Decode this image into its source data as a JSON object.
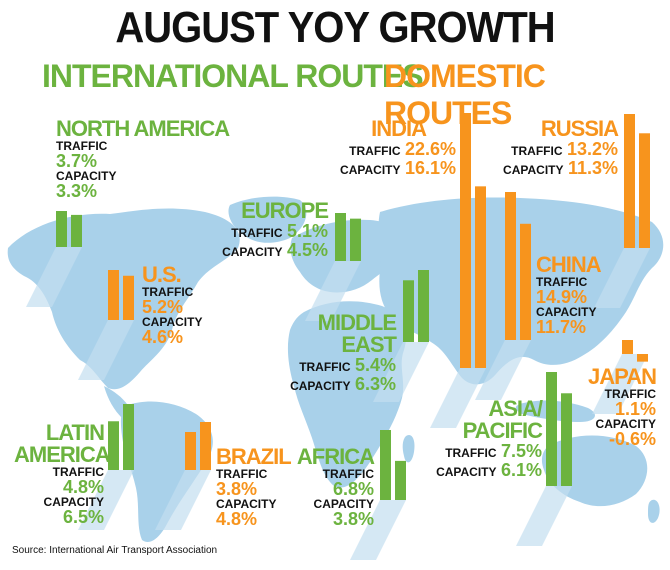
{
  "colors": {
    "international": "#6cb33f",
    "domestic": "#f7941d",
    "map": "#a9d1ea",
    "map_dark": "#c3def0"
  },
  "title": "AUGUST YOY GROWTH",
  "subtitle_international": "INTERNATIONAL ROUTES",
  "subtitle_domestic": "DOMESTIC ROUTES",
  "traffic_label": "TRAFFIC",
  "capacity_label": "CAPACITY",
  "source": "Source: International Air Transport Association",
  "chart_data": {
    "type": "bar",
    "series": [
      {
        "name": "TRAFFIC"
      },
      {
        "name": "CAPACITY"
      }
    ],
    "regions": [
      {
        "id": "north_america",
        "name": "NORTH AMERICA",
        "group": "international",
        "traffic": 3.7,
        "capacity": 3.3,
        "traffic_text": "3.7%",
        "capacity_text": "3.3%"
      },
      {
        "id": "us",
        "name": "U.S.",
        "group": "domestic",
        "traffic": 5.2,
        "capacity": 4.6,
        "traffic_text": "5.2%",
        "capacity_text": "4.6%"
      },
      {
        "id": "europe",
        "name": "EUROPE",
        "group": "international",
        "traffic": 5.1,
        "capacity": 4.5,
        "traffic_text": "5.1%",
        "capacity_text": "4.5%"
      },
      {
        "id": "middle_east",
        "name": "MIDDLE EAST",
        "group": "international",
        "traffic": 5.4,
        "capacity": 6.3,
        "traffic_text": "5.4%",
        "capacity_text": "6.3%"
      },
      {
        "id": "latin_america",
        "name": "LATIN AMERICA",
        "name_lines": [
          "LATIN",
          "AMERICA"
        ],
        "group": "international",
        "traffic": 4.8,
        "capacity": 6.5,
        "traffic_text": "4.8%",
        "capacity_text": "6.5%"
      },
      {
        "id": "brazil",
        "name": "BRAZIL",
        "group": "domestic",
        "traffic": 3.8,
        "capacity": 4.8,
        "traffic_text": "3.8%",
        "capacity_text": "4.8%"
      },
      {
        "id": "africa",
        "name": "AFRICA",
        "group": "international",
        "traffic": 6.8,
        "capacity": 3.8,
        "traffic_text": "6.8%",
        "capacity_text": "3.8%"
      },
      {
        "id": "asia_pacific",
        "name": "ASIA/PACIFIC",
        "name_lines": [
          "ASIA/",
          "PACIFIC"
        ],
        "group": "international",
        "traffic": 7.5,
        "capacity": 6.1,
        "traffic_text": "7.5%",
        "capacity_text": "6.1%"
      },
      {
        "id": "india",
        "name": "INDIA",
        "group": "domestic",
        "traffic": 22.6,
        "capacity": 16.1,
        "traffic_text": "22.6%",
        "capacity_text": "16.1%"
      },
      {
        "id": "china",
        "name": "CHINA",
        "group": "domestic",
        "traffic": 14.9,
        "capacity": 11.7,
        "traffic_text": "14.9%",
        "capacity_text": "11.7%"
      },
      {
        "id": "russia",
        "name": "RUSSIA",
        "group": "domestic",
        "traffic": 13.2,
        "capacity": 11.3,
        "traffic_text": "13.2%",
        "capacity_text": "11.3%"
      },
      {
        "id": "japan",
        "name": "JAPAN",
        "group": "domestic",
        "traffic": 1.1,
        "capacity": -0.6,
        "traffic_text": "1.1%",
        "capacity_text": "-0.6%"
      }
    ]
  }
}
